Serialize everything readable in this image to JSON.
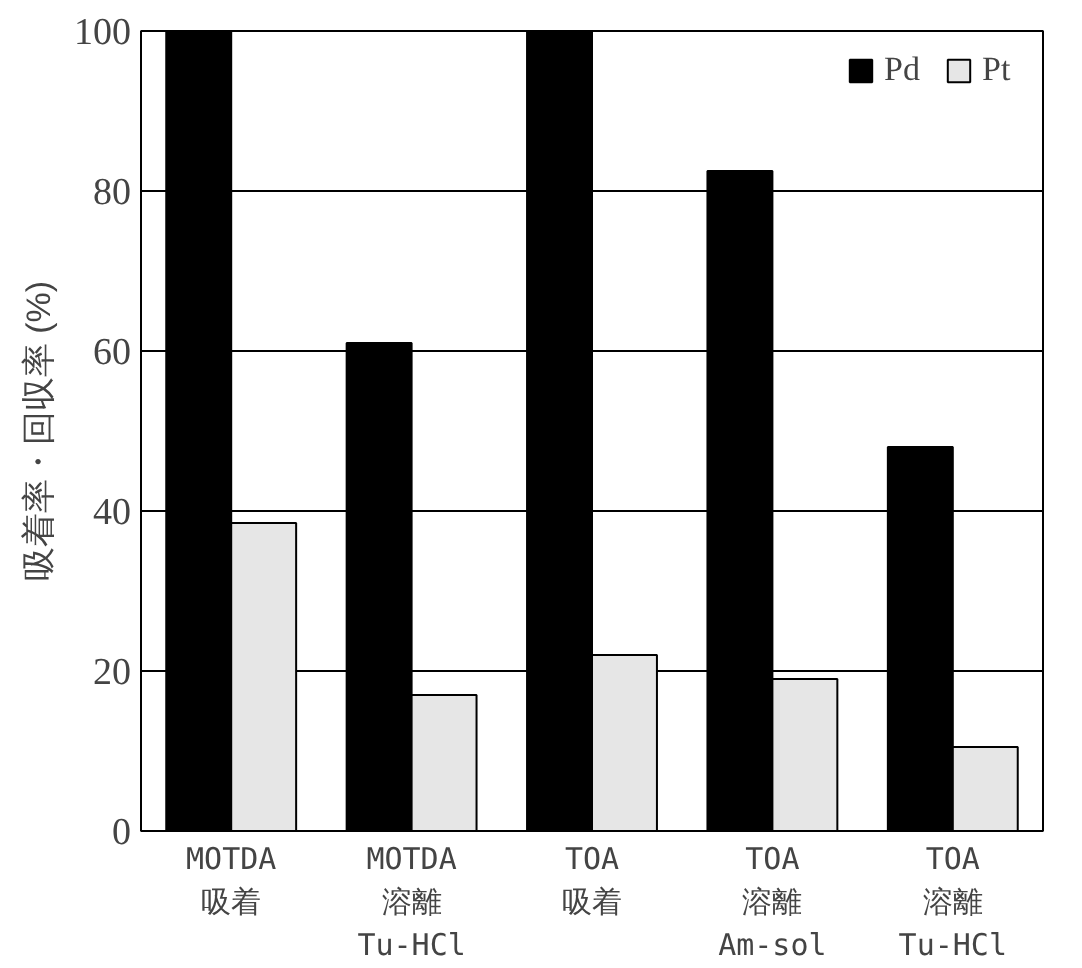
{
  "chart_data": {
    "type": "bar",
    "ylabel": "吸着率・回収率 (%)",
    "categories": [
      "MOTDA\n吸着",
      "MOTDA\n溶離\nTu-HCl",
      "TOA\n吸着",
      "TOA\n溶離\nAm-sol",
      "TOA\n溶離\nTu-HCl"
    ],
    "series": [
      {
        "name": "Pd",
        "color": "#000000",
        "values": [
          100,
          61,
          100,
          82.5,
          48
        ]
      },
      {
        "name": "Pt",
        "color": "#e6e6e6",
        "values": [
          38.5,
          17,
          22,
          19,
          10.5
        ]
      }
    ],
    "ylim": [
      0,
      100
    ],
    "yticks": [
      0,
      20,
      40,
      60,
      80,
      100
    ],
    "grid": "y",
    "legend": "top right"
  }
}
